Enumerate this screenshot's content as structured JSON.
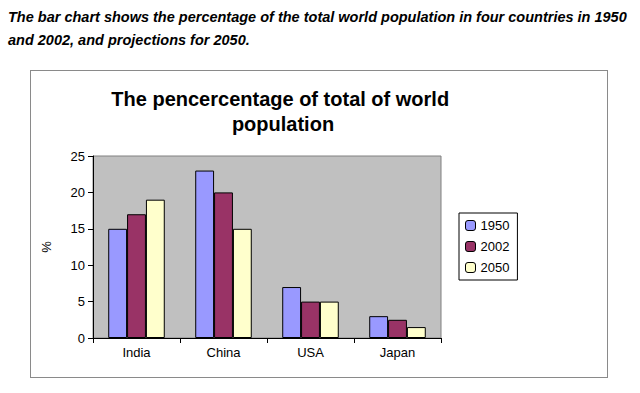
{
  "chart_data": {
    "type": "bar",
    "subtitle": "The bar chart shows the percentage of the total world population in four countries in 1950 and 2002, and projections for 2050.",
    "title": "The pencercentage of total of world population",
    "y_label": "%",
    "categories": [
      "India",
      "China",
      "USA",
      "Japan"
    ],
    "series": [
      {
        "name": "1950",
        "color": "#9999ff",
        "values": [
          15,
          23,
          7,
          3
        ]
      },
      {
        "name": "2002",
        "color": "#993366",
        "values": [
          17,
          20,
          5,
          2.5
        ]
      },
      {
        "name": "2050",
        "color": "#ffffcc",
        "values": [
          19,
          15,
          5,
          1.5
        ]
      }
    ],
    "ylim": [
      0,
      25
    ],
    "yticks": [
      0,
      5,
      10,
      15,
      20,
      25
    ],
    "grid": false,
    "legend": "right"
  }
}
